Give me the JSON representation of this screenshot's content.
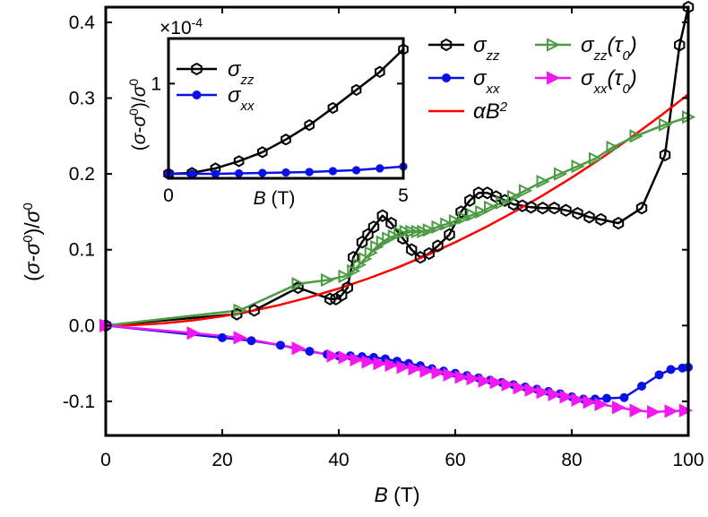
{
  "chart_data": [
    {
      "type": "line",
      "role": "main",
      "xlabel_var": "B",
      "xlabel_unit": " (T)",
      "ylabel": "(σ-σ⁰)/σ⁰",
      "xlim": [
        0,
        100
      ],
      "ylim": [
        -0.145,
        0.42
      ],
      "xticks": [
        0,
        20,
        40,
        60,
        80,
        100
      ],
      "xtick_labels": [
        "0",
        "20",
        "40",
        "60",
        "80",
        "100"
      ],
      "yticks": [
        -0.1,
        0.0,
        0.1,
        0.2,
        0.3,
        0.4
      ],
      "ytick_labels": [
        "-0.1",
        "0.0",
        "0.1",
        "0.2",
        "0.3",
        "0.4"
      ],
      "legend": [
        {
          "series": "szz",
          "base": "σ",
          "sub": "zz",
          "extra": ""
        },
        {
          "series": "sxx",
          "base": "σ",
          "sub": "xx",
          "extra": ""
        },
        {
          "series": "fit",
          "base": "αB",
          "sup": "2",
          "extra": ""
        },
        {
          "series": "szz_t0",
          "base": "σ",
          "sub": "zz",
          "extra": "(τ",
          "extra_sub": "0",
          "extra_end": ")"
        },
        {
          "series": "sxx_t0",
          "base": "σ",
          "sub": "xx",
          "extra": "(τ",
          "extra_sub": "0",
          "extra_end": ")"
        }
      ],
      "series": [
        {
          "id": "szz",
          "name": "σzz",
          "color": "#000000",
          "marker": "hexagon",
          "x": [
            0,
            22.5,
            25.5,
            33,
            38.5,
            39.5,
            40.5,
            41.5,
            42.5,
            44,
            45,
            46,
            47.5,
            49,
            51,
            52.5,
            54,
            55.5,
            57,
            59,
            61,
            62.5,
            64,
            65.5,
            67,
            68.5,
            70,
            71.5,
            73,
            75,
            77,
            79,
            81,
            83,
            85,
            88,
            92,
            96,
            98.5,
            100
          ],
          "y": [
            0.0,
            0.015,
            0.02,
            0.05,
            0.035,
            0.035,
            0.04,
            0.05,
            0.09,
            0.11,
            0.12,
            0.13,
            0.145,
            0.135,
            0.115,
            0.1,
            0.09,
            0.095,
            0.105,
            0.12,
            0.15,
            0.165,
            0.175,
            0.175,
            0.17,
            0.165,
            0.16,
            0.158,
            0.156,
            0.155,
            0.155,
            0.152,
            0.148,
            0.143,
            0.14,
            0.135,
            0.155,
            0.225,
            0.37,
            0.42
          ]
        },
        {
          "id": "sxx",
          "name": "σxx",
          "color": "#0a10e8",
          "marker": "circle",
          "x": [
            0,
            20,
            25,
            30,
            35,
            38,
            40,
            42,
            44,
            46,
            48,
            50,
            52,
            54,
            56,
            58,
            60,
            62,
            64,
            66,
            68,
            70,
            72,
            74,
            76,
            78,
            80,
            82,
            84,
            86,
            89,
            92,
            95,
            97,
            99,
            100
          ],
          "y": [
            0.0,
            -0.016,
            -0.02,
            -0.026,
            -0.034,
            -0.038,
            -0.04,
            -0.04,
            -0.041,
            -0.042,
            -0.044,
            -0.047,
            -0.05,
            -0.053,
            -0.057,
            -0.06,
            -0.063,
            -0.066,
            -0.069,
            -0.072,
            -0.075,
            -0.078,
            -0.081,
            -0.084,
            -0.087,
            -0.09,
            -0.094,
            -0.097,
            -0.097,
            -0.096,
            -0.095,
            -0.08,
            -0.065,
            -0.058,
            -0.056,
            -0.055
          ]
        },
        {
          "id": "fit",
          "name": "αB²",
          "color": "#ff0000",
          "marker": "none",
          "formula_coeff": 3.05e-05,
          "x": [
            0,
            5,
            10,
            15,
            20,
            25,
            30,
            35,
            40,
            45,
            50,
            55,
            60,
            65,
            70,
            75,
            80,
            85,
            90,
            95,
            100
          ],
          "y": [
            0.0,
            0.0008,
            0.003,
            0.0069,
            0.0122,
            0.0191,
            0.0275,
            0.0374,
            0.0488,
            0.0618,
            0.0763,
            0.0923,
            0.1098,
            0.1289,
            0.1495,
            0.1716,
            0.1952,
            0.2204,
            0.2471,
            0.2753,
            0.305
          ]
        },
        {
          "id": "szz_t0",
          "name": "σzz(τ0)",
          "color": "#4c9a43",
          "marker": "triangle-right-open",
          "x": [
            0,
            23,
            33,
            38,
            41,
            42.5,
            43.5,
            44.5,
            45.5,
            46.5,
            47.5,
            48.5,
            49.5,
            50.5,
            51.5,
            52.5,
            53.5,
            54.5,
            55.5,
            57,
            58.5,
            60,
            61.5,
            63,
            64.5,
            66,
            68,
            70,
            72,
            75,
            78,
            81,
            84,
            87,
            91,
            96,
            100
          ],
          "y": [
            0.0,
            0.02,
            0.055,
            0.06,
            0.065,
            0.072,
            0.08,
            0.088,
            0.096,
            0.104,
            0.11,
            0.115,
            0.118,
            0.122,
            0.124,
            0.124,
            0.124,
            0.124,
            0.126,
            0.13,
            0.134,
            0.138,
            0.142,
            0.146,
            0.15,
            0.156,
            0.162,
            0.17,
            0.178,
            0.19,
            0.2,
            0.21,
            0.22,
            0.235,
            0.25,
            0.265,
            0.275
          ]
        },
        {
          "id": "sxx_t0",
          "name": "σxx(τ0)",
          "color": "#f218f2",
          "marker": "triangle-right-filled",
          "x": [
            0,
            15,
            23,
            33,
            39,
            41,
            43,
            45,
            47,
            49,
            51,
            53,
            55,
            57,
            59,
            61,
            63,
            65,
            67,
            69,
            71,
            73,
            75,
            77,
            79,
            81,
            83,
            85,
            88,
            91,
            94,
            97,
            99.5
          ],
          "y": [
            0.0,
            -0.01,
            -0.016,
            -0.03,
            -0.04,
            -0.042,
            -0.045,
            -0.048,
            -0.05,
            -0.052,
            -0.055,
            -0.057,
            -0.06,
            -0.062,
            -0.065,
            -0.068,
            -0.07,
            -0.073,
            -0.075,
            -0.078,
            -0.082,
            -0.085,
            -0.088,
            -0.091,
            -0.094,
            -0.098,
            -0.101,
            -0.104,
            -0.108,
            -0.112,
            -0.114,
            -0.113,
            -0.112
          ]
        }
      ]
    },
    {
      "type": "line",
      "role": "inset",
      "xlabel_var": "B",
      "xlabel_unit": " (T)",
      "ylabel": "(σ-σ⁰)/σ⁰",
      "multiplier_base": "×10",
      "multiplier_exp": "-4",
      "xlim": [
        0,
        5
      ],
      "ylim": [
        -0.05,
        1.5
      ],
      "xticks": [
        0,
        5
      ],
      "xtick_labels": [
        "0",
        "5"
      ],
      "yticks": [
        1
      ],
      "ytick_labels": [
        "1"
      ],
      "legend": [
        {
          "series": "in_szz",
          "base": "σ",
          "sub": "zz"
        },
        {
          "series": "in_sxx",
          "base": "σ",
          "sub": "xx"
        }
      ],
      "series": [
        {
          "id": "in_szz",
          "name": "σzz",
          "color": "#000000",
          "marker": "hexagon",
          "x": [
            0,
            0.5,
            1.0,
            1.5,
            2.0,
            2.5,
            3.0,
            3.5,
            4.0,
            4.5,
            5.0
          ],
          "y": [
            0.0,
            0.01,
            0.06,
            0.14,
            0.24,
            0.38,
            0.54,
            0.73,
            0.93,
            1.13,
            1.38
          ]
        },
        {
          "id": "in_sxx",
          "name": "σxx",
          "color": "#0a10e8",
          "marker": "circle",
          "x": [
            0,
            0.5,
            1.0,
            1.5,
            2.0,
            2.5,
            3.0,
            3.5,
            4.0,
            4.5,
            5.0
          ],
          "y": [
            0.0,
            0.0,
            0.0,
            0.005,
            0.01,
            0.015,
            0.02,
            0.03,
            0.04,
            0.06,
            0.08
          ]
        }
      ]
    }
  ]
}
